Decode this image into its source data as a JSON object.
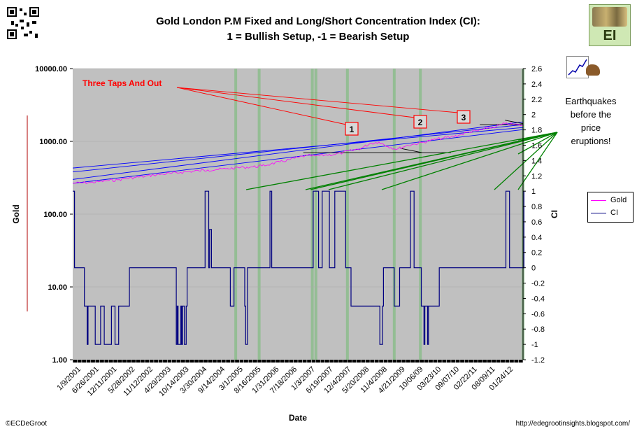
{
  "title_line1": "Gold London P.M Fixed and Long/Short Concentration Index (CI):",
  "title_line2": "1 = Bullish Setup, -1 = Bearish Setup",
  "annotation_taps": "Three Taps And Out",
  "tap_labels": [
    "1",
    "2",
    "3"
  ],
  "quake_text": [
    "Earthquakes",
    "before the",
    "price",
    "eruptions!"
  ],
  "logo_text": "EI",
  "footer_left": "©ECDeGroot",
  "footer_right": "http://edegrootinsights.blogspot.com/",
  "colors": {
    "gold": "#ff00ff",
    "ci": "#000080",
    "plot_bg": "#c0c0c0",
    "green_band": "#8fbc8f",
    "trend_blue": "#0000ff",
    "annot_red": "#ff0000",
    "annot_green": "#008000"
  },
  "chart_data": {
    "type": "line",
    "xlabel": "Date",
    "ylabel_left": "Gold",
    "ylabel_right": "CI",
    "y_left_log": true,
    "y_left_ticks": [
      "10000.00",
      "1000.00",
      "100.00",
      "10.00",
      "1.00"
    ],
    "y_left_range": [
      1,
      10000
    ],
    "y_right_ticks": [
      "2.6",
      "2.4",
      "2.2",
      "2",
      "1.8",
      "1.6",
      "1.4",
      "1.2",
      "1",
      "0.8",
      "0.6",
      "0.4",
      "0.2",
      "0",
      "-0.2",
      "-0.4",
      "-0.6",
      "-0.8",
      "-1",
      "-1.2"
    ],
    "y_right_range": [
      -1.2,
      2.6
    ],
    "x_tick_labels": [
      "1/9/2001",
      "6/26/2001",
      "12/11/2001",
      "5/28/2002",
      "11/12/2002",
      "4/29/2003",
      "10/14/2003",
      "3/30/2004",
      "9/14/2004",
      "3/1/2005",
      "8/16/2005",
      "1/31/2006",
      "7/18/2006",
      "1/3/2007",
      "6/19/2007",
      "12/4/2007",
      "5/20/2008",
      "11/4/2008",
      "4/21/2009",
      "10/06/09",
      "03/23/10",
      "09/07/10",
      "02/22/11",
      "08/09/11",
      "01/24/12"
    ],
    "legend": "right",
    "series": [
      {
        "name": "Gold",
        "x": [
          0,
          0.5,
          1,
          1.5,
          2,
          2.5,
          3,
          3.5,
          4,
          4.5,
          5,
          5.5,
          6,
          6.5,
          7,
          7.5,
          8,
          8.5,
          9,
          9.5,
          10,
          10.5,
          11,
          11.5,
          12,
          12.5,
          13,
          13.5,
          14,
          14.5,
          15,
          15.5,
          16,
          16.5,
          17,
          17.5,
          18,
          18.5,
          19,
          19.5,
          20,
          20.5,
          21,
          21.5,
          22,
          22.5,
          23,
          23.5,
          24,
          24.5,
          25
        ],
        "values": [
          265,
          270,
          272,
          280,
          290,
          295,
          310,
          320,
          330,
          345,
          355,
          365,
          375,
          385,
          395,
          405,
          410,
          420,
          430,
          440,
          445,
          460,
          490,
          520,
          560,
          600,
          640,
          630,
          650,
          660,
          700,
          750,
          800,
          930,
          980,
          850,
          780,
          870,
          920,
          980,
          1050,
          1100,
          1150,
          1230,
          1350,
          1400,
          1500,
          1600,
          1750,
          1720,
          1650
        ]
      },
      {
        "name": "CI",
        "x": [
          0,
          0.05,
          0.1,
          0.15,
          0.6,
          0.65,
          0.75,
          0.8,
          0.85,
          1.2,
          1.25,
          1.5,
          1.55,
          1.7,
          1.75,
          1.8,
          2.1,
          2.15,
          2.3,
          2.35,
          2.5,
          2.55,
          3.1,
          3.15,
          3.7,
          3.75,
          5.7,
          5.75,
          5.8,
          5.85,
          6.0,
          6.05,
          6.1,
          6.2,
          6.3,
          6.35,
          7.3,
          7.35,
          7.5,
          7.55,
          7.6,
          7.7,
          8.7,
          8.75,
          8.9,
          8.95,
          9.5,
          9.55,
          9.6,
          9.7,
          10.9,
          10.95,
          11.0,
          11.05,
          11.2,
          11.25,
          13.3,
          13.35,
          13.6,
          13.65,
          13.8,
          13.85,
          14.2,
          14.25,
          14.5,
          14.55,
          15.1,
          15.15,
          15.4,
          15.45,
          17.0,
          17.05,
          17.2,
          17.25,
          17.8,
          17.85,
          18.1,
          18.15,
          18.7,
          18.75,
          18.9,
          18.95,
          19.3,
          19.35,
          19.5,
          19.55,
          19.7,
          19.75,
          20.3,
          20.35,
          24.0,
          24.05,
          24.2,
          24.25,
          25.0,
          25.05
        ],
        "values": [
          1,
          1,
          0,
          0,
          0,
          -0.5,
          -0.5,
          -1,
          -0.5,
          -0.5,
          -1,
          -1,
          -0.5,
          -0.5,
          -1,
          -1,
          -1,
          -0.5,
          -0.5,
          -1,
          -1,
          -0.5,
          -0.5,
          0,
          0,
          0,
          0,
          -1,
          -0.5,
          -1,
          -0.5,
          -1,
          -0.5,
          -1,
          -0.5,
          0,
          0,
          1,
          1,
          0,
          0.5,
          0,
          0,
          -0.5,
          -0.5,
          0,
          0,
          -0.5,
          -1,
          0,
          0,
          1,
          1,
          0,
          0,
          0,
          0,
          1,
          1,
          0,
          0,
          1,
          1,
          0,
          0,
          1,
          1,
          0,
          0,
          -0.5,
          -0.5,
          -1,
          -0.5,
          0,
          0,
          -0.5,
          -0.5,
          0,
          0,
          1,
          1,
          0,
          0,
          -0.5,
          -1,
          -0.5,
          -1,
          -0.5,
          -0.5,
          0,
          0,
          1,
          1,
          0,
          0,
          1
        ]
      }
    ],
    "green_bands_x": [
      9.05,
      10.35,
      13.3,
      13.5,
      15.25,
      17.85,
      19.3,
      25.0
    ]
  }
}
